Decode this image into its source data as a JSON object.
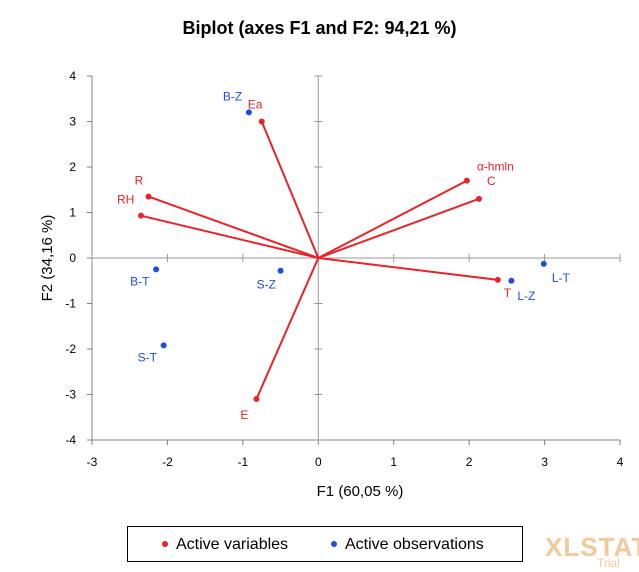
{
  "watermark": {
    "brand": "XLSTAT",
    "sub": "Trial"
  },
  "legend": [
    {
      "label": "Active variables",
      "color": "#e8232a"
    },
    {
      "label": "Active observations",
      "color": "#1f4fd8"
    }
  ],
  "colors": {
    "variables": "#e8232a",
    "observations": "#1f4fd8",
    "axis": "#808080",
    "zero": "#9a9a9a"
  },
  "chart_data": {
    "type": "scatter",
    "title": "Biplot (axes F1 and F2: 94,21 %)",
    "xlabel": "F1 (60,05 %)",
    "ylabel": "F2 (34,16 %)",
    "xlim": [
      -3,
      4
    ],
    "ylim": [
      -4,
      4
    ],
    "xticks": [
      "-3",
      "-2",
      "-1",
      "0",
      "1",
      "2",
      "3",
      "4"
    ],
    "yticks": [
      "-4",
      "-3",
      "-2",
      "-1",
      "0",
      "1",
      "2",
      "3",
      "4"
    ],
    "grid": false,
    "legend_position": "bottom",
    "series": [
      {
        "name": "Active variables",
        "kind": "vectors",
        "points": [
          {
            "label": "Ea",
            "x": -0.75,
            "y": 3.0
          },
          {
            "label": "R",
            "x": -2.25,
            "y": 1.35
          },
          {
            "label": "RH",
            "x": -2.35,
            "y": 0.93
          },
          {
            "label": "α-hmln",
            "x": 1.97,
            "y": 1.7
          },
          {
            "label": "C",
            "x": 2.13,
            "y": 1.3
          },
          {
            "label": "T",
            "x": 2.38,
            "y": -0.48
          },
          {
            "label": "E",
            "x": -0.82,
            "y": -3.1
          }
        ]
      },
      {
        "name": "Active observations",
        "kind": "points",
        "points": [
          {
            "label": "B-Z",
            "x": -0.92,
            "y": 3.2
          },
          {
            "label": "B-T",
            "x": -2.15,
            "y": -0.25
          },
          {
            "label": "S-Z",
            "x": -0.5,
            "y": -0.28
          },
          {
            "label": "S-T",
            "x": -2.05,
            "y": -1.92
          },
          {
            "label": "L-Z",
            "x": 2.56,
            "y": -0.5
          },
          {
            "label": "L-T",
            "x": 2.99,
            "y": -0.13
          }
        ]
      }
    ]
  }
}
